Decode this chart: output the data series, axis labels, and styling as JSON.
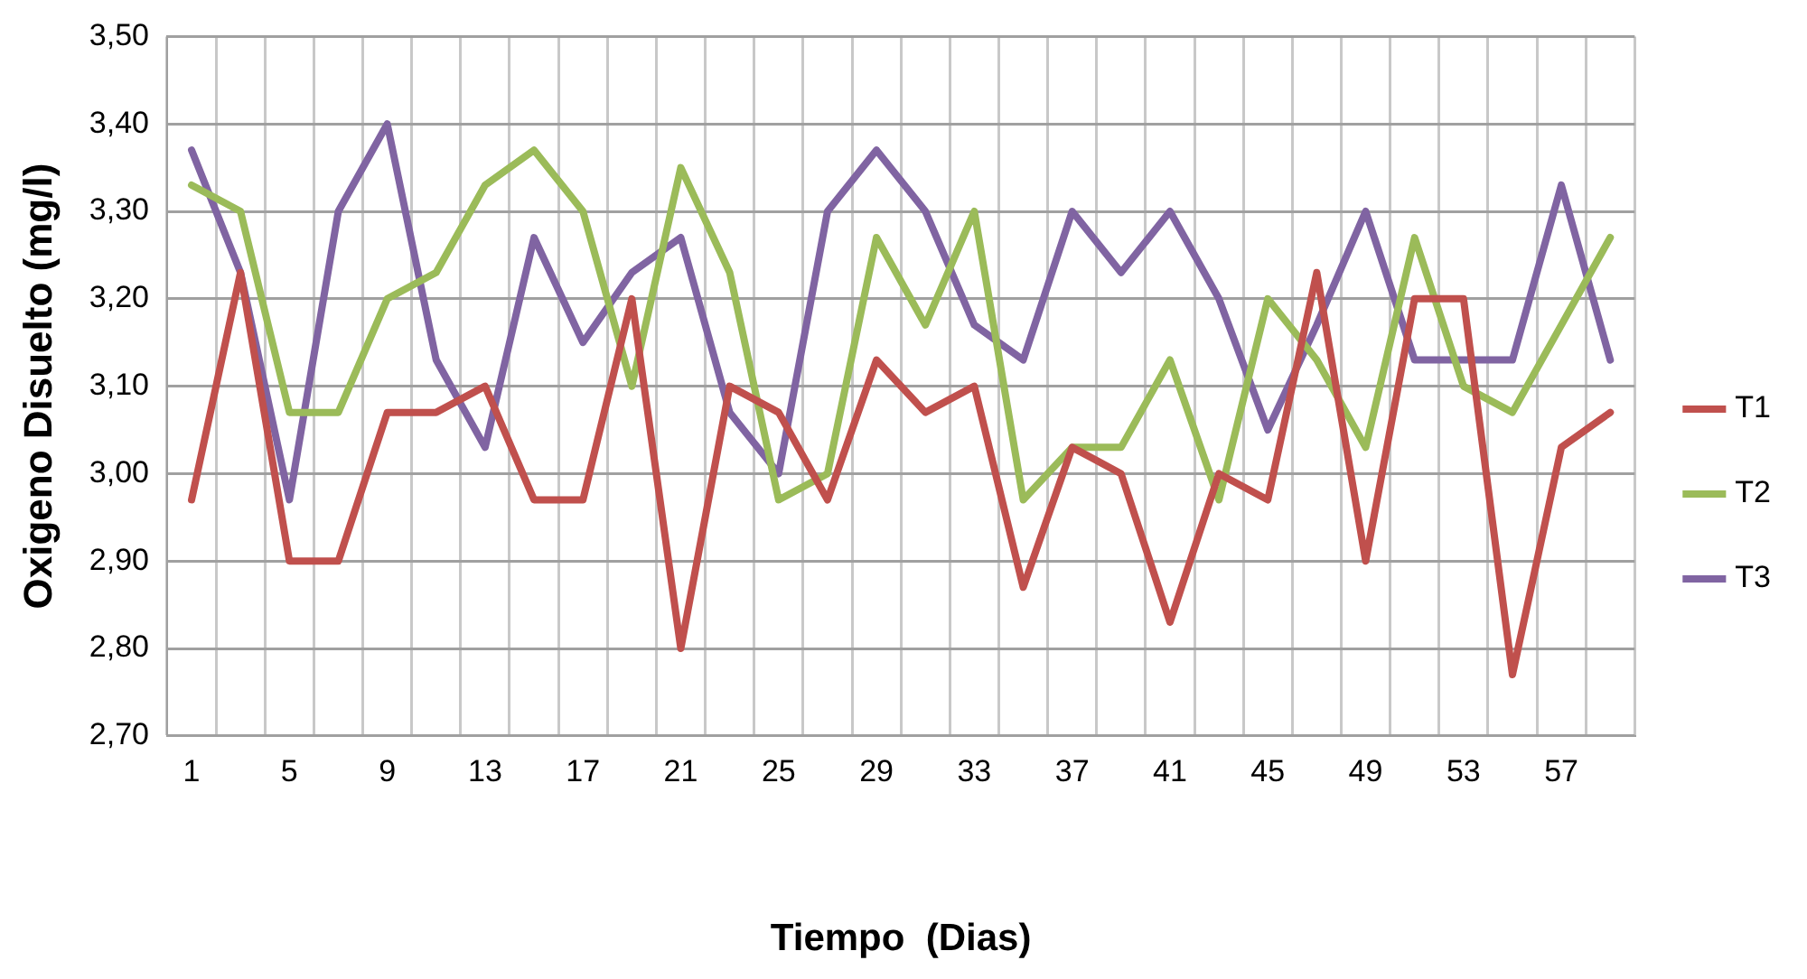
{
  "chart_data": {
    "type": "line",
    "xlabel": "Tiempo  (Dias)",
    "ylabel": "Oxigeno Disuelto (mg/l)",
    "categories": [
      "1",
      null,
      "5",
      null,
      "9",
      null,
      "13",
      null,
      "17",
      null,
      "21",
      null,
      "25",
      null,
      "29",
      null,
      "33",
      null,
      "37",
      null,
      "41",
      null,
      "45",
      null,
      "49",
      null,
      "53",
      null,
      "57",
      null
    ],
    "series": [
      {
        "name": "T1",
        "color": "#c0504d",
        "values": [
          2.97,
          3.23,
          2.9,
          2.9,
          3.07,
          3.07,
          3.1,
          2.97,
          2.97,
          3.2,
          2.8,
          3.1,
          3.07,
          2.97,
          3.13,
          3.07,
          3.1,
          2.87,
          3.03,
          3.0,
          2.83,
          3.0,
          2.97,
          3.23,
          2.9,
          3.2,
          3.2,
          2.77,
          3.03,
          3.07
        ]
      },
      {
        "name": "T2",
        "color": "#9bbb59",
        "values": [
          3.33,
          3.3,
          3.07,
          3.07,
          3.2,
          3.23,
          3.33,
          3.37,
          3.3,
          3.1,
          3.35,
          3.23,
          2.97,
          3.0,
          3.27,
          3.17,
          3.3,
          2.97,
          3.03,
          3.03,
          3.13,
          2.97,
          3.2,
          3.13,
          3.03,
          3.27,
          3.1,
          3.07,
          3.17,
          3.27
        ]
      },
      {
        "name": "T3",
        "color": "#8064a2",
        "values": [
          3.37,
          3.23,
          2.97,
          3.3,
          3.4,
          3.13,
          3.03,
          3.27,
          3.15,
          3.23,
          3.27,
          3.07,
          3.0,
          3.3,
          3.37,
          3.3,
          3.17,
          3.13,
          3.3,
          3.23,
          3.3,
          3.2,
          3.05,
          3.17,
          3.3,
          3.13,
          3.13,
          3.13,
          3.33,
          3.13
        ]
      }
    ],
    "ylim": [
      2.7,
      3.5
    ],
    "yticks": [
      {
        "value": 2.7,
        "label": "2,70"
      },
      {
        "value": 2.8,
        "label": "2,80"
      },
      {
        "value": 2.9,
        "label": "2,90"
      },
      {
        "value": 3.0,
        "label": "3,00"
      },
      {
        "value": 3.1,
        "label": "3,10"
      },
      {
        "value": 3.2,
        "label": "3,20"
      },
      {
        "value": 3.3,
        "label": "3,30"
      },
      {
        "value": 3.4,
        "label": "3,40"
      },
      {
        "value": 3.5,
        "label": "3,50"
      }
    ],
    "grid": true,
    "legend": "right",
    "marker": "none",
    "line_style": "solid"
  }
}
